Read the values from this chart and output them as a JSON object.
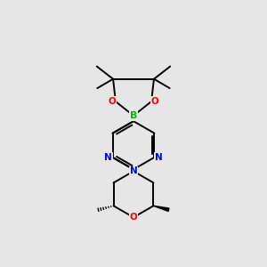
{
  "background_color": "#e6e6e6",
  "bond_color": "#000000",
  "N_color": "#0000ff",
  "O_color": "#ff0000",
  "B_color": "#00bb00",
  "figsize": [
    3.0,
    3.0
  ],
  "dpi": 100,
  "xlim": [
    0,
    10
  ],
  "ylim": [
    0,
    10
  ]
}
